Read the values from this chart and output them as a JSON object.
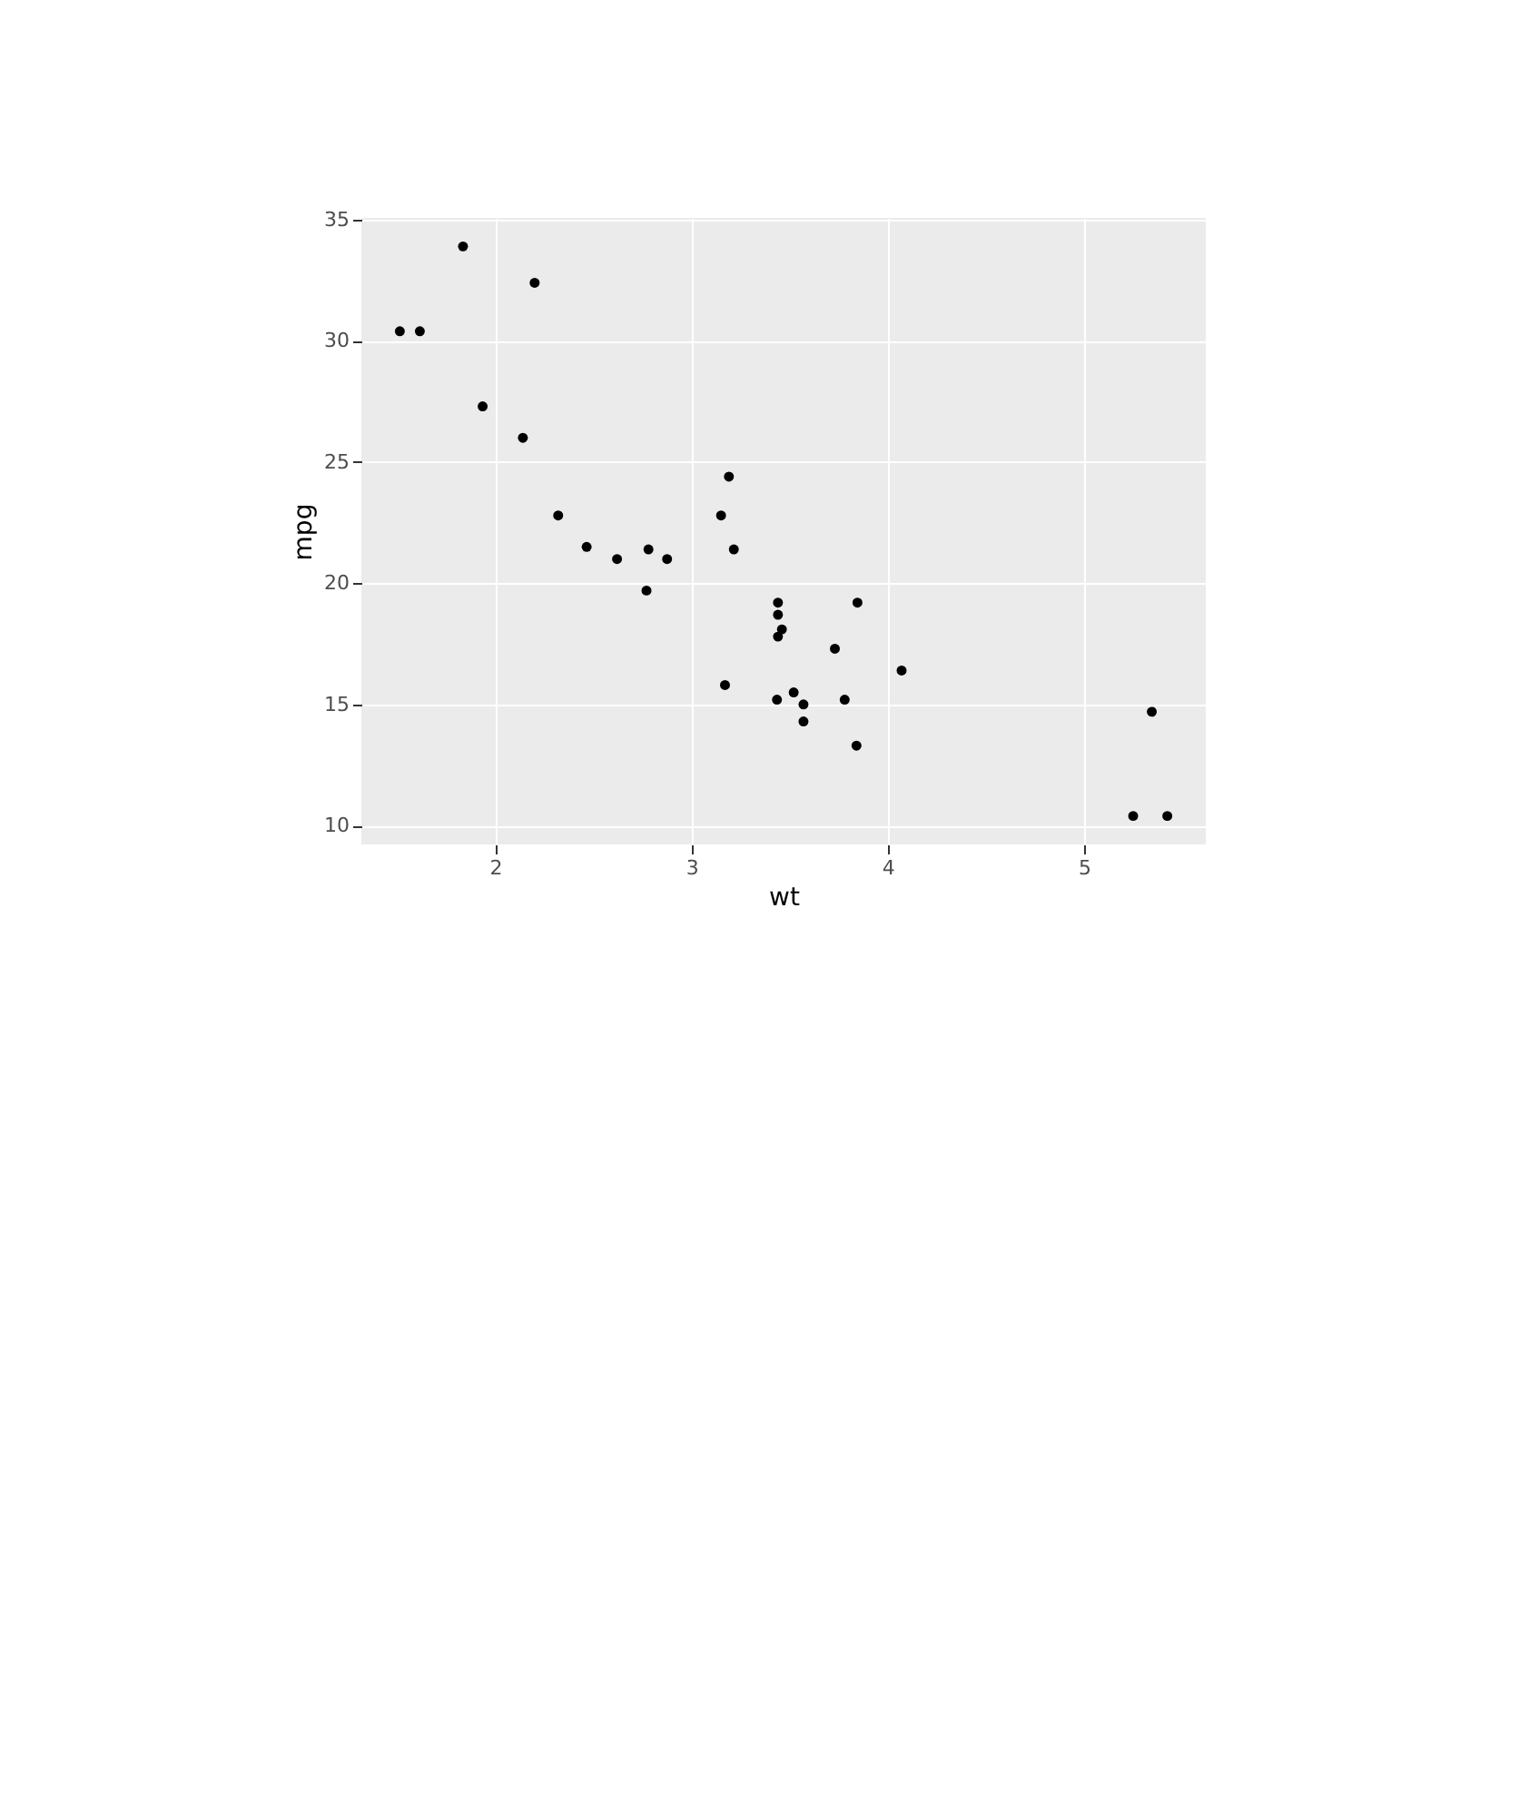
{
  "chart_data": {
    "type": "scatter",
    "xlabel": "wt",
    "ylabel": "mpg",
    "x": [
      2.62,
      2.875,
      2.32,
      3.215,
      3.44,
      3.46,
      3.57,
      3.19,
      3.15,
      3.44,
      3.44,
      4.07,
      3.73,
      3.78,
      5.25,
      5.424,
      5.345,
      2.2,
      1.615,
      1.835,
      2.465,
      3.52,
      3.435,
      3.84,
      3.845,
      1.935,
      2.14,
      1.513,
      3.17,
      2.77,
      3.57,
      2.78
    ],
    "values": [
      21.0,
      21.0,
      22.8,
      21.4,
      18.7,
      18.1,
      14.3,
      24.4,
      22.8,
      19.2,
      17.8,
      16.4,
      17.3,
      15.2,
      10.4,
      10.4,
      14.7,
      32.4,
      30.4,
      33.9,
      21.5,
      15.5,
      15.2,
      13.3,
      19.2,
      27.3,
      26.0,
      30.4,
      15.8,
      19.7,
      15.0,
      21.4
    ],
    "color": "#000000",
    "marker": "circle",
    "grid": true,
    "xlim": [
      1.317,
      5.62
    ],
    "ylim": [
      9.225,
      35.075
    ],
    "xticks": [
      2,
      3,
      4,
      5
    ],
    "yticks": [
      10,
      15,
      20,
      25,
      30,
      35
    ]
  }
}
